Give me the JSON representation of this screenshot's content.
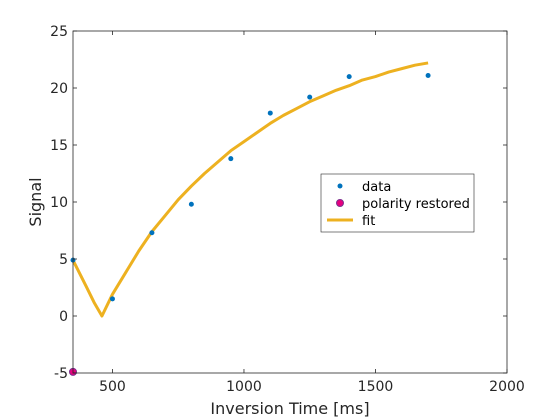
{
  "chart_data": {
    "type": "scatter",
    "title": "",
    "xlabel": "Inversion Time [ms]",
    "ylabel": "Signal",
    "xlim": [
      350,
      2000
    ],
    "ylim": [
      -5,
      25
    ],
    "xticks": [
      500,
      1000,
      1500,
      2000
    ],
    "yticks": [
      -5,
      0,
      5,
      10,
      15,
      20,
      25
    ],
    "grid": false,
    "legend_position": "center-right",
    "series": [
      {
        "name": "data",
        "kind": "scatter",
        "color": "#0072BD",
        "points": [
          [
            350,
            4.9
          ],
          [
            500,
            1.5
          ],
          [
            650,
            7.3
          ],
          [
            800,
            9.8
          ],
          [
            950,
            13.8
          ],
          [
            1100,
            17.8
          ],
          [
            1250,
            19.2
          ],
          [
            1400,
            21.0
          ],
          [
            1700,
            21.1
          ]
        ]
      },
      {
        "name": "polarity restored",
        "kind": "scatter",
        "color": "#E6007E",
        "edge_color": "#7E2F8E",
        "points": [
          [
            350,
            -4.9
          ]
        ]
      },
      {
        "name": "fit",
        "kind": "line",
        "color": "#EDB120",
        "points": [
          [
            350,
            4.9
          ],
          [
            400,
            2.6
          ],
          [
            430,
            1.2
          ],
          [
            460,
            0.0
          ],
          [
            500,
            1.9
          ],
          [
            550,
            3.8
          ],
          [
            600,
            5.7
          ],
          [
            650,
            7.4
          ],
          [
            700,
            8.8
          ],
          [
            750,
            10.2
          ],
          [
            800,
            11.4
          ],
          [
            850,
            12.5
          ],
          [
            900,
            13.5
          ],
          [
            950,
            14.5
          ],
          [
            1000,
            15.3
          ],
          [
            1050,
            16.1
          ],
          [
            1100,
            16.9
          ],
          [
            1150,
            17.6
          ],
          [
            1200,
            18.2
          ],
          [
            1250,
            18.8
          ],
          [
            1300,
            19.3
          ],
          [
            1350,
            19.8
          ],
          [
            1400,
            20.2
          ],
          [
            1450,
            20.7
          ],
          [
            1500,
            21.0
          ],
          [
            1550,
            21.4
          ],
          [
            1600,
            21.7
          ],
          [
            1650,
            22.0
          ],
          [
            1700,
            22.2
          ]
        ]
      }
    ]
  }
}
